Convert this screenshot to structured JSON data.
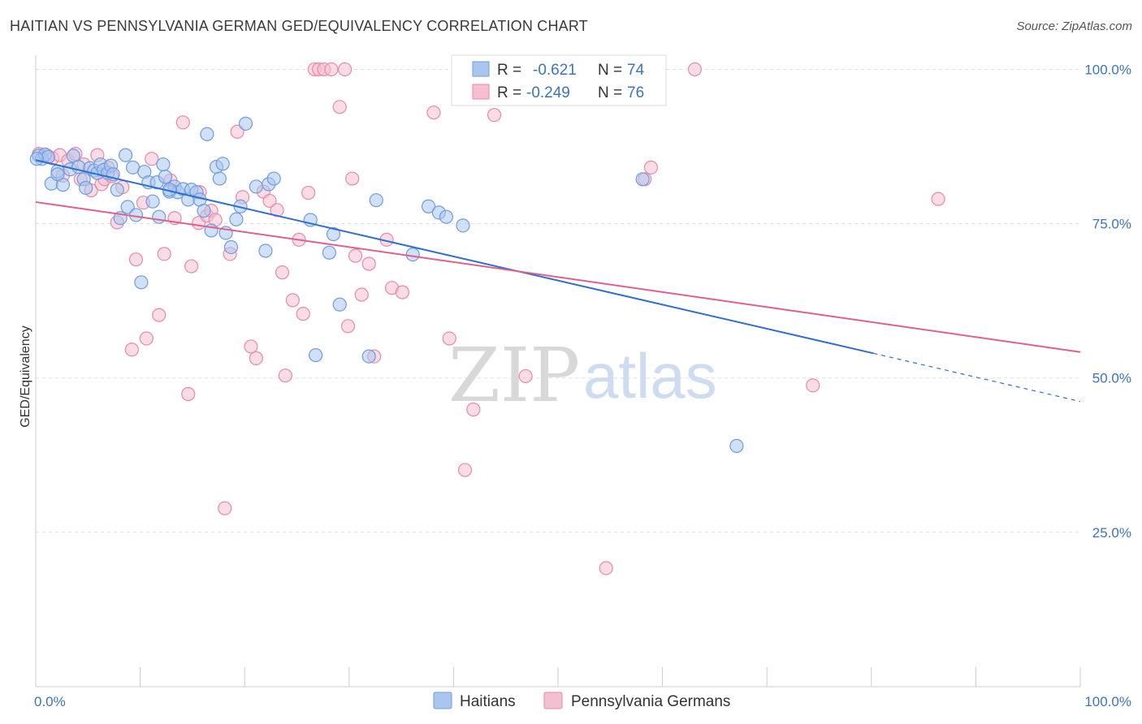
{
  "title": "HAITIAN VS PENNSYLVANIA GERMAN GED/EQUIVALENCY CORRELATION CHART",
  "source": "Source: ZipAtlas.com",
  "watermark": {
    "zip": "ZIP",
    "atlas": "atlas"
  },
  "chart_data": {
    "type": "scatter",
    "ylabel": "GED/Equivalency",
    "xlabel": "",
    "xlim": [
      0,
      100
    ],
    "ylim": [
      0,
      104
    ],
    "x_tick_labels": [
      "0.0%",
      "100.0%"
    ],
    "y_ticks": [
      {
        "value": 100,
        "label": "100.0%"
      },
      {
        "value": 75,
        "label": "75.0%"
      },
      {
        "value": 50,
        "label": "50.0%"
      },
      {
        "value": 25,
        "label": "25.0%"
      }
    ],
    "grid": true,
    "legend_placement": "top-center",
    "legend": [
      {
        "r_label": "R = ",
        "r_value": "-0.621",
        "n_label": "N = ",
        "n_value": "74"
      },
      {
        "r_label": "R = ",
        "r_value": "-0.249",
        "n_label": "N = ",
        "n_value": "76"
      }
    ],
    "series": [
      {
        "name": "Haitians",
        "color": "#6f9be0",
        "fill": "#aac6ef",
        "trend": {
          "x0": 0,
          "y0": 85.3,
          "x1": 80.2,
          "y1": 54.0,
          "dash_to_x": 100,
          "dash_to_y": 46.2,
          "color": "#2f6fd0"
        },
        "points": [
          [
            0.3,
            86
          ],
          [
            0.6,
            85.5
          ],
          [
            0.9,
            86.2
          ],
          [
            1.2,
            85.8
          ],
          [
            1.5,
            81.5
          ],
          [
            2.1,
            83.5
          ],
          [
            2.6,
            81.3
          ],
          [
            3.3,
            83.8
          ],
          [
            3.6,
            86
          ],
          [
            4.1,
            84.2
          ],
          [
            4.6,
            82.2
          ],
          [
            4.8,
            80.8
          ],
          [
            5.2,
            84
          ],
          [
            5.6,
            83.6
          ],
          [
            5.9,
            83.2
          ],
          [
            6.2,
            84.6
          ],
          [
            6.5,
            83.7
          ],
          [
            6.9,
            83.2
          ],
          [
            7.2,
            84.4
          ],
          [
            7.4,
            83
          ],
          [
            7.8,
            80.5
          ],
          [
            8.1,
            75.9
          ],
          [
            8.6,
            86.1
          ],
          [
            8.8,
            77.7
          ],
          [
            9.3,
            84.1
          ],
          [
            9.6,
            76.4
          ],
          [
            10.1,
            65.5
          ],
          [
            10.4,
            83.4
          ],
          [
            10.8,
            81.7
          ],
          [
            11.2,
            78.6
          ],
          [
            11.6,
            81.7
          ],
          [
            11.8,
            76.1
          ],
          [
            12.2,
            84.6
          ],
          [
            12.4,
            82.6
          ],
          [
            12.8,
            80.2
          ],
          [
            13.3,
            81
          ],
          [
            13.6,
            80.1
          ],
          [
            14.1,
            80.6
          ],
          [
            14.6,
            78.9
          ],
          [
            14.9,
            80.5
          ],
          [
            15.4,
            80.1
          ],
          [
            15.7,
            78.9
          ],
          [
            16.1,
            77.1
          ],
          [
            16.4,
            89.5
          ],
          [
            16.8,
            73.9
          ],
          [
            17.3,
            84.2
          ],
          [
            17.6,
            82.3
          ],
          [
            17.9,
            84.7
          ],
          [
            18.2,
            73.5
          ],
          [
            18.7,
            71.2
          ],
          [
            19.2,
            75.7
          ],
          [
            19.6,
            77.8
          ],
          [
            20.1,
            91.2
          ],
          [
            21.1,
            81
          ],
          [
            22.0,
            70.6
          ],
          [
            22.3,
            81.4
          ],
          [
            22.8,
            82.3
          ],
          [
            26.3,
            75.6
          ],
          [
            26.8,
            53.7
          ],
          [
            28.1,
            70.3
          ],
          [
            28.5,
            73.3
          ],
          [
            29.1,
            61.9
          ],
          [
            31.9,
            53.5
          ],
          [
            32.6,
            78.8
          ],
          [
            36.1,
            70
          ],
          [
            37.6,
            77.8
          ],
          [
            38.6,
            76.8
          ],
          [
            39.3,
            76.1
          ],
          [
            40.9,
            74.7
          ],
          [
            67.1,
            39
          ],
          [
            58.1,
            82.2
          ],
          [
            0.1,
            85.5
          ],
          [
            12.8,
            80.5
          ],
          [
            2.1,
            83
          ]
        ]
      },
      {
        "name": "Pennsylvania Germans",
        "color": "#e889a8",
        "fill": "#f5bfd2",
        "trend": {
          "x0": 0,
          "y0": 78.5,
          "x1": 100,
          "y1": 54.2,
          "color": "#e0608a"
        },
        "points": [
          [
            0.3,
            86.3
          ],
          [
            1.1,
            86
          ],
          [
            1.6,
            85.6
          ],
          [
            2.3,
            86.1
          ],
          [
            3.1,
            85.2
          ],
          [
            3.8,
            86.3
          ],
          [
            4.3,
            82.2
          ],
          [
            4.6,
            84.6
          ],
          [
            5.3,
            80.4
          ],
          [
            5.9,
            86.1
          ],
          [
            6.3,
            81.4
          ],
          [
            6.6,
            82.2
          ],
          [
            6.9,
            84.1
          ],
          [
            7.3,
            82.7
          ],
          [
            7.8,
            75.2
          ],
          [
            8.3,
            80.9
          ],
          [
            9.2,
            54.6
          ],
          [
            9.6,
            69.2
          ],
          [
            10.3,
            78.4
          ],
          [
            10.6,
            56.4
          ],
          [
            11.1,
            85.5
          ],
          [
            11.8,
            60.2
          ],
          [
            12.3,
            70.1
          ],
          [
            12.9,
            82
          ],
          [
            13.3,
            75.9
          ],
          [
            14.1,
            91.4
          ],
          [
            14.6,
            47.4
          ],
          [
            14.9,
            68.1
          ],
          [
            15.6,
            75.1
          ],
          [
            16.4,
            76.3
          ],
          [
            16.8,
            77.1
          ],
          [
            17.2,
            75.6
          ],
          [
            18.1,
            28.9
          ],
          [
            18.6,
            70.1
          ],
          [
            19.3,
            89.9
          ],
          [
            19.8,
            79.3
          ],
          [
            20.6,
            55.1
          ],
          [
            21.1,
            53.2
          ],
          [
            21.8,
            80.2
          ],
          [
            22.4,
            78.7
          ],
          [
            23.1,
            77.2
          ],
          [
            23.6,
            67.1
          ],
          [
            23.9,
            50.4
          ],
          [
            24.6,
            62.6
          ],
          [
            25.2,
            72.4
          ],
          [
            25.6,
            60.4
          ],
          [
            26.1,
            80
          ],
          [
            26.7,
            100
          ],
          [
            27.1,
            100
          ],
          [
            27.6,
            100
          ],
          [
            28.3,
            100
          ],
          [
            29.1,
            93.9
          ],
          [
            29.6,
            100
          ],
          [
            29.9,
            58.4
          ],
          [
            30.3,
            82.3
          ],
          [
            30.6,
            69.8
          ],
          [
            31.2,
            63.5
          ],
          [
            31.9,
            68.5
          ],
          [
            32.4,
            53.5
          ],
          [
            33.6,
            72.4
          ],
          [
            34.1,
            64.6
          ],
          [
            35.1,
            63.9
          ],
          [
            38.1,
            93
          ],
          [
            39.6,
            56.4
          ],
          [
            41.1,
            35.1
          ],
          [
            41.9,
            44.9
          ],
          [
            43.9,
            92.6
          ],
          [
            46.9,
            50.3
          ],
          [
            54.6,
            19.2
          ],
          [
            58.3,
            82.2
          ],
          [
            58.9,
            84.1
          ],
          [
            63.1,
            100
          ],
          [
            74.4,
            48.8
          ],
          [
            86.4,
            79
          ],
          [
            2.6,
            82.8
          ],
          [
            15.7,
            80.1
          ]
        ]
      }
    ]
  }
}
